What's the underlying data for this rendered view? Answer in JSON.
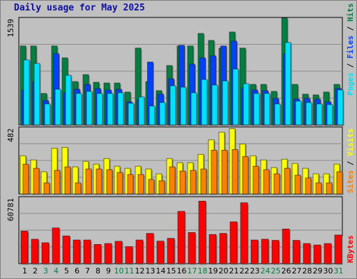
{
  "title": "Daily usage for May 2025",
  "colors": {
    "hits": "#008040",
    "files": "#0040ff",
    "pages": "#00e0ff",
    "visits": "#ffff00",
    "sites": "#ff8000",
    "kbytes": "#ff0000",
    "weekend_label": "#008040",
    "weekday_label": "#000000"
  },
  "chart_data": [
    {
      "type": "bar",
      "panel": "requests",
      "ytick": "1539",
      "ylim": [
        0,
        1539
      ],
      "categories": [
        "1",
        "2",
        "3",
        "4",
        "5",
        "6",
        "7",
        "8",
        "9",
        "10",
        "11",
        "12",
        "13",
        "14",
        "15",
        "16",
        "17",
        "18",
        "19",
        "20",
        "21",
        "22",
        "23",
        "24",
        "25",
        "26",
        "27",
        "28",
        "29",
        "30",
        "31"
      ],
      "weekend_days": [
        "3",
        "4",
        "10",
        "11",
        "17",
        "18",
        "24",
        "25",
        "31"
      ],
      "legend": [
        "Hits",
        "Files",
        "Pages"
      ],
      "series": [
        {
          "name": "Hits",
          "values": [
            1130,
            1130,
            450,
            1130,
            960,
            620,
            720,
            610,
            600,
            600,
            470,
            1100,
            620,
            490,
            850,
            1130,
            1130,
            1310,
            1210,
            1100,
            1330,
            1100,
            580,
            580,
            480,
            1530,
            580,
            440,
            430,
            470,
            580
          ]
        },
        {
          "name": "Files",
          "values": [
            500,
            620,
            350,
            1020,
            460,
            510,
            580,
            520,
            500,
            510,
            330,
            360,
            900,
            440,
            660,
            1140,
            870,
            960,
            990,
            1130,
            1200,
            530,
            500,
            490,
            380,
            1020,
            370,
            380,
            370,
            330,
            520
          ]
        },
        {
          "name": "Pages",
          "values": [
            930,
            880,
            300,
            510,
            710,
            450,
            480,
            450,
            450,
            460,
            310,
            400,
            270,
            320,
            560,
            540,
            460,
            650,
            570,
            630,
            800,
            590,
            450,
            450,
            300,
            1180,
            340,
            320,
            300,
            290,
            500
          ]
        }
      ]
    },
    {
      "type": "bar",
      "panel": "visitors",
      "ytick": "482",
      "ylim": [
        0,
        482
      ],
      "legend": [
        "Sites",
        "Visits"
      ],
      "series": [
        {
          "name": "Visits",
          "values": [
            275,
            245,
            160,
            330,
            335,
            195,
            235,
            215,
            255,
            200,
            185,
            200,
            180,
            145,
            255,
            225,
            225,
            285,
            390,
            445,
            470,
            360,
            275,
            245,
            190,
            250,
            220,
            185,
            145,
            145,
            215
          ]
        },
        {
          "name": "Sites",
          "values": [
            215,
            185,
            80,
            170,
            195,
            80,
            180,
            180,
            175,
            155,
            140,
            140,
            105,
            95,
            195,
            165,
            170,
            180,
            315,
            315,
            320,
            270,
            200,
            175,
            145,
            185,
            135,
            115,
            80,
            80,
            160
          ]
        }
      ]
    },
    {
      "type": "bar",
      "panel": "kbytes",
      "ytick": "60781",
      "ylim": [
        0,
        60781
      ],
      "legend": [
        "KBytes"
      ],
      "series": [
        {
          "name": "KBytes",
          "values": [
            29500,
            22200,
            19000,
            32500,
            25200,
            21500,
            21500,
            17500,
            18300,
            20300,
            15500,
            21500,
            27500,
            20500,
            23000,
            47500,
            28300,
            56800,
            26500,
            27500,
            38000,
            55300,
            21500,
            22200,
            21200,
            31500,
            21200,
            18300,
            17000,
            18300,
            26000
          ]
        }
      ]
    }
  ]
}
